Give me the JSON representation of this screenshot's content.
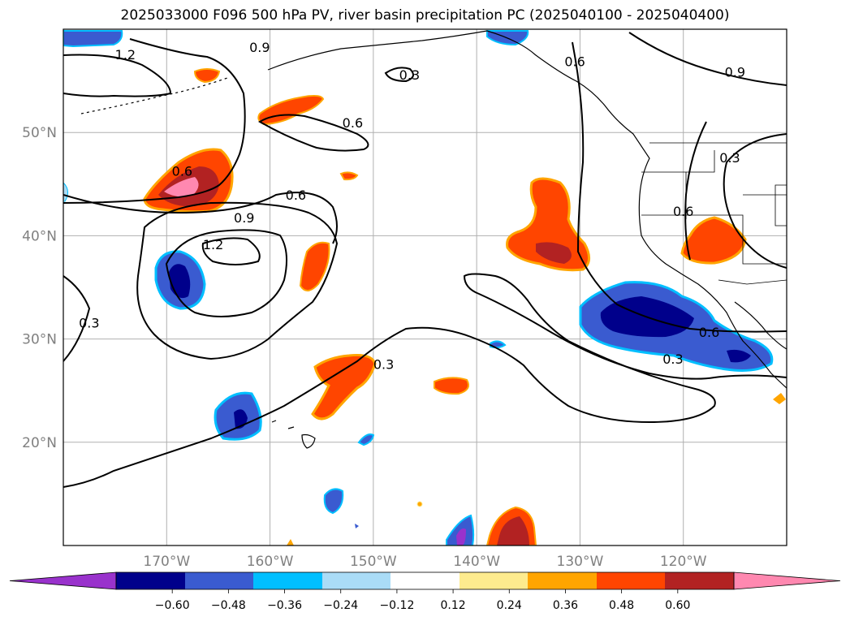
{
  "title": "2025033000 F096 500 hPa PV, river basin precipitation PC (2025040100 - 2025040400)",
  "colors": {
    "pos_012": "#fdeb8e",
    "pos_024": "#ffa500",
    "pos_036": "#ff4500",
    "pos_048": "#b22222",
    "pos_060": "#ff88b0",
    "neg_012": "#aadcf7",
    "neg_024": "#00bfff",
    "neg_036": "#3a5bd0",
    "neg_048": "#00008b",
    "neg_060": "#9932cc"
  },
  "lat_labels": [
    {
      "text": "50°N",
      "lat": 50
    },
    {
      "text": "40°N",
      "lat": 40
    },
    {
      "text": "30°N",
      "lat": 30
    },
    {
      "text": "20°N",
      "lat": 20
    }
  ],
  "lon_labels": [
    {
      "text": "170°W",
      "lon": -170
    },
    {
      "text": "160°W",
      "lon": -160
    },
    {
      "text": "150°W",
      "lon": -150
    },
    {
      "text": "140°W",
      "lon": -140
    },
    {
      "text": "130°W",
      "lon": -130
    },
    {
      "text": "120°W",
      "lon": -120
    }
  ],
  "contour_labels": [
    {
      "text": "1.2",
      "lon": -174,
      "lat": 57.5
    },
    {
      "text": "0.9",
      "lon": -161,
      "lat": 58.2
    },
    {
      "text": "0.3",
      "lon": -146.5,
      "lat": 55.5
    },
    {
      "text": "0.6",
      "lon": -130.5,
      "lat": 56.8
    },
    {
      "text": "0.9",
      "lon": -115,
      "lat": 55.8
    },
    {
      "text": "0.6",
      "lon": -152,
      "lat": 50.9
    },
    {
      "text": "0.6",
      "lon": -168.5,
      "lat": 46.2
    },
    {
      "text": "0.6",
      "lon": -157.5,
      "lat": 43.9
    },
    {
      "text": "0.9",
      "lon": -162.5,
      "lat": 41.7
    },
    {
      "text": "1.2",
      "lon": -165.5,
      "lat": 39.1
    },
    {
      "text": "0.3",
      "lon": -115.5,
      "lat": 47.5
    },
    {
      "text": "0.6",
      "lon": -120,
      "lat": 42.3
    },
    {
      "text": "0.3",
      "lon": -177.5,
      "lat": 31.5
    },
    {
      "text": "0.3",
      "lon": -149,
      "lat": 27.5
    },
    {
      "text": "0.6",
      "lon": -117.5,
      "lat": 30.6
    },
    {
      "text": "0.3",
      "lon": -121,
      "lat": 28.0
    }
  ],
  "colorbar": {
    "ticks": [
      "−0.60",
      "−0.48",
      "−0.36",
      "−0.24",
      "−0.12",
      "0.12",
      "0.24",
      "0.36",
      "0.48",
      "0.60"
    ]
  }
}
